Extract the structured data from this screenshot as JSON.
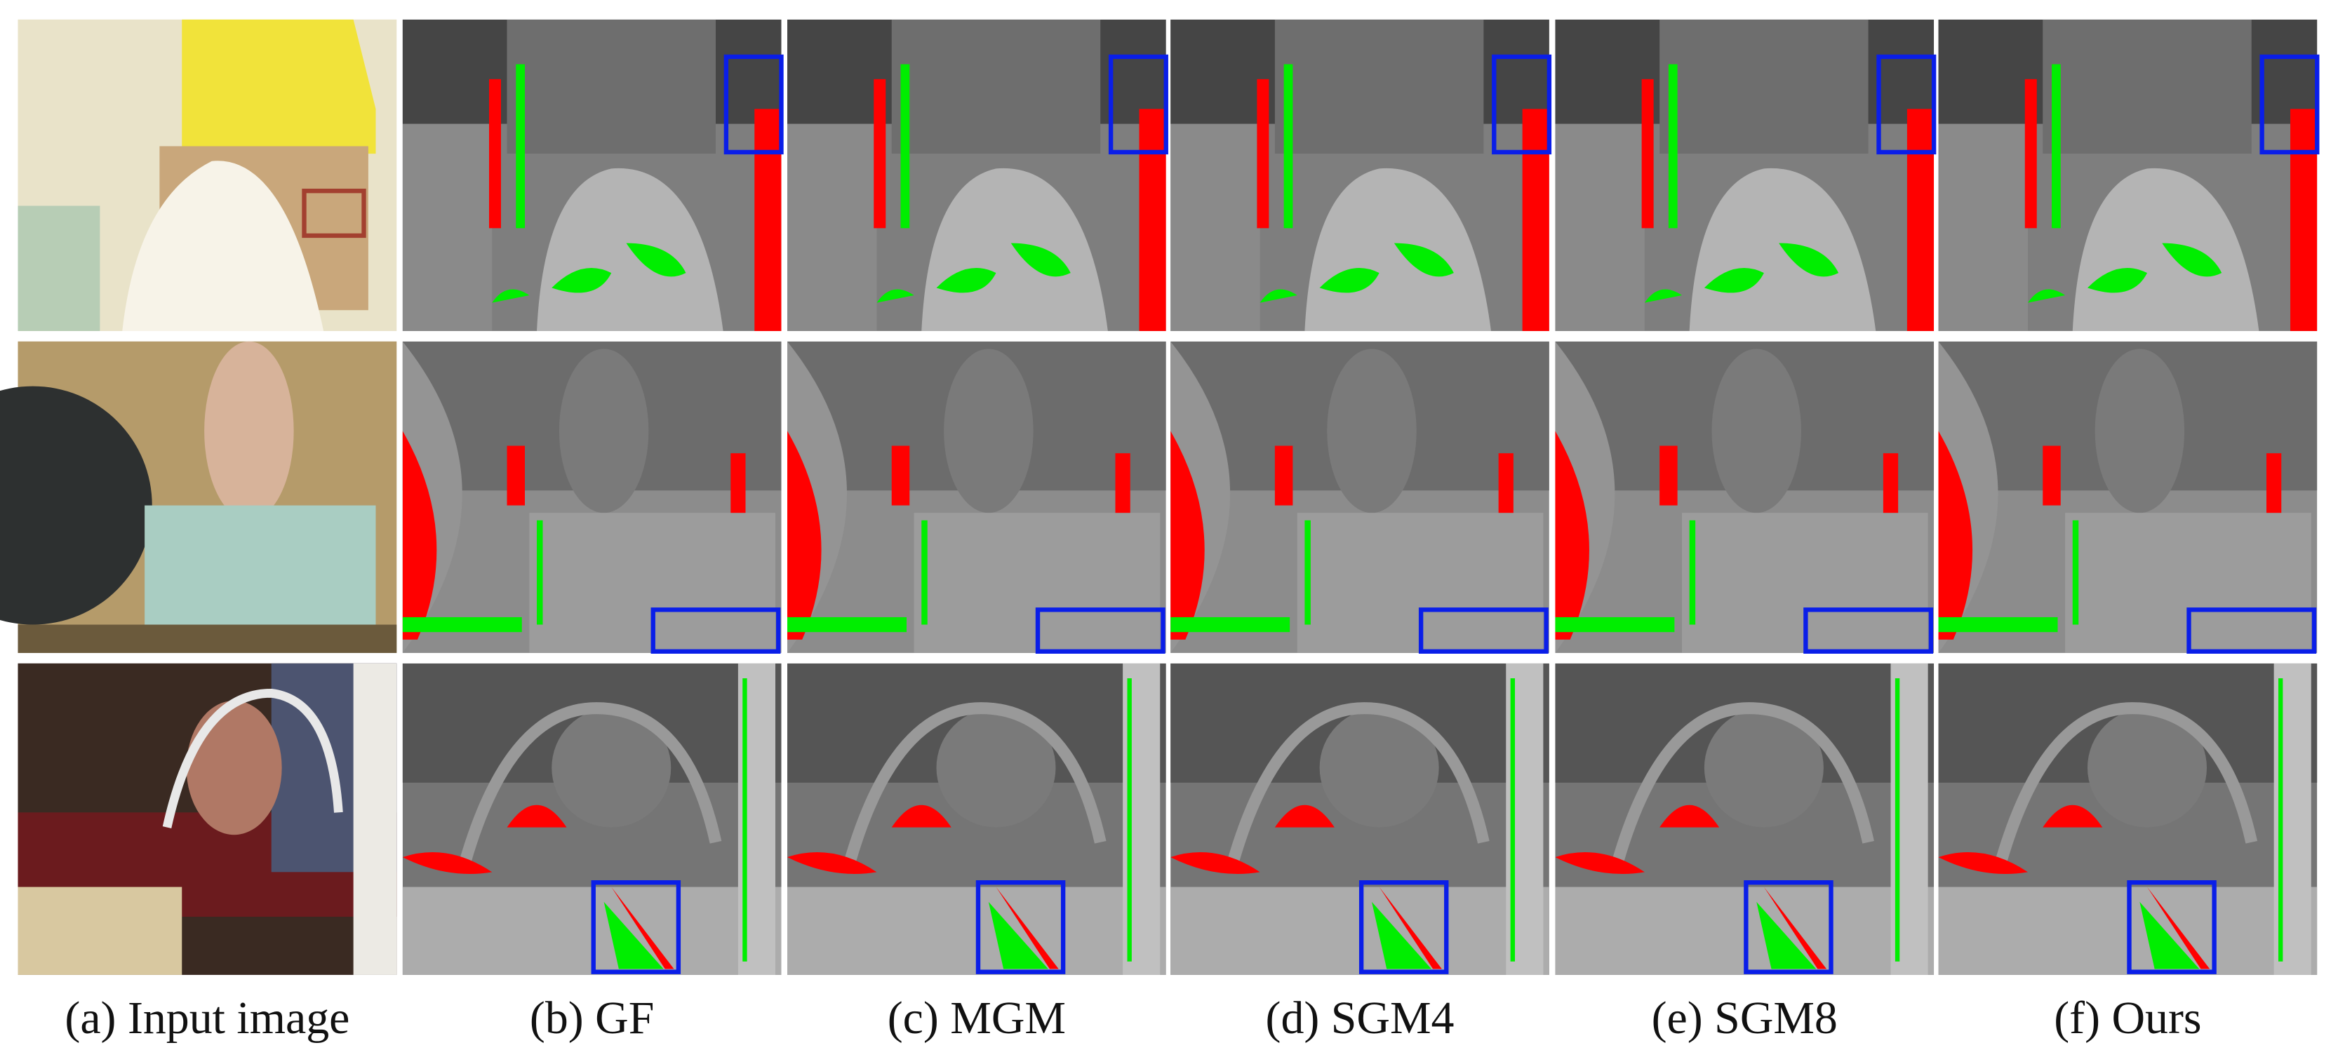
{
  "captions": [
    "(a) Input image",
    "(b) GF",
    "(c) MGM",
    "(d) SGM4",
    "(e) SGM8",
    "(f) Ours"
  ]
}
